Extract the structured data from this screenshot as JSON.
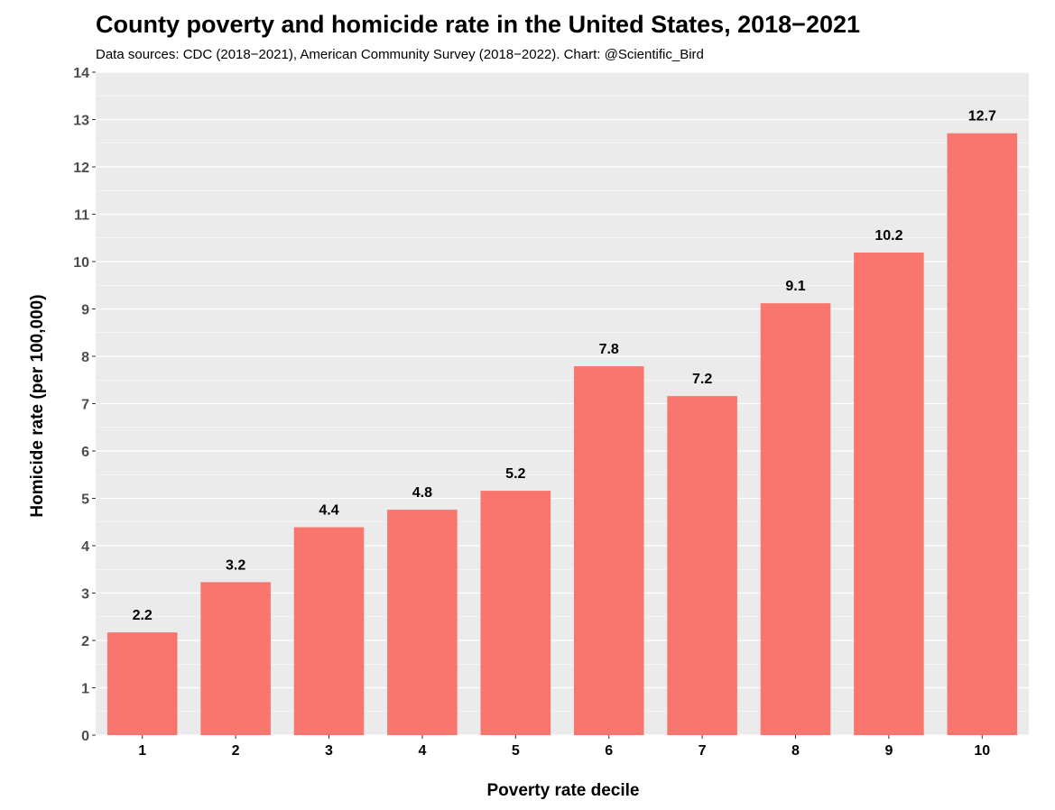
{
  "chart_data": {
    "type": "bar",
    "title": "County poverty and homicide rate in the United States, 2018−2021",
    "subtitle": "Data sources: CDC (2018−2021), American Community Survey (2018−2022). Chart: @Scientific_Bird",
    "xlabel": "Poverty rate decile",
    "ylabel": "Homicide rate (per 100,000)",
    "categories": [
      "1",
      "2",
      "3",
      "4",
      "5",
      "6",
      "7",
      "8",
      "9",
      "10"
    ],
    "values": [
      2.17,
      3.23,
      4.39,
      4.76,
      5.16,
      7.79,
      7.16,
      9.12,
      10.19,
      12.71
    ],
    "labels": [
      "2.2",
      "3.2",
      "4.4",
      "4.8",
      "5.2",
      "7.8",
      "7.2",
      "9.1",
      "10.2",
      "12.7"
    ],
    "ylim": [
      0,
      14
    ],
    "yticks": [
      "0",
      "1",
      "2",
      "3",
      "4",
      "5",
      "6",
      "7",
      "8",
      "9",
      "10",
      "11",
      "12",
      "13",
      "14"
    ],
    "grid": true,
    "colors": {
      "bar": "#F8766D",
      "panel": "#EBEBEB",
      "grid": "#FFFFFF",
      "tick_text": "#4D4D4D"
    }
  }
}
